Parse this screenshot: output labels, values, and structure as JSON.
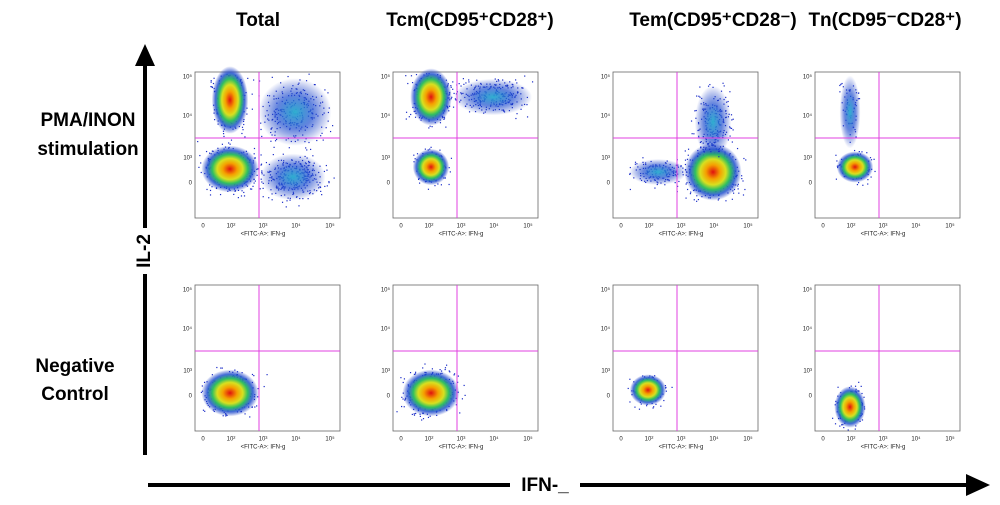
{
  "column_titles": [
    "Total",
    "Tcm(CD95⁺CD28⁺)",
    "Tem(CD95⁺CD28⁻)",
    "Tn(CD95⁻CD28⁺)"
  ],
  "row_labels": [
    [
      "PMA/INON",
      "stimulation"
    ],
    [
      "Negative",
      "Control"
    ]
  ],
  "y_axis_label": "IL-2",
  "x_axis_label": "IFN-_",
  "panel_x_label": "<FITC-A>: IFN-g",
  "panel_y_ticks": [
    "10⁵",
    "10⁴",
    "10³",
    "0"
  ],
  "panel_x_ticks": [
    "0",
    "10²",
    "10³",
    "10⁴",
    "10⁵"
  ]
}
